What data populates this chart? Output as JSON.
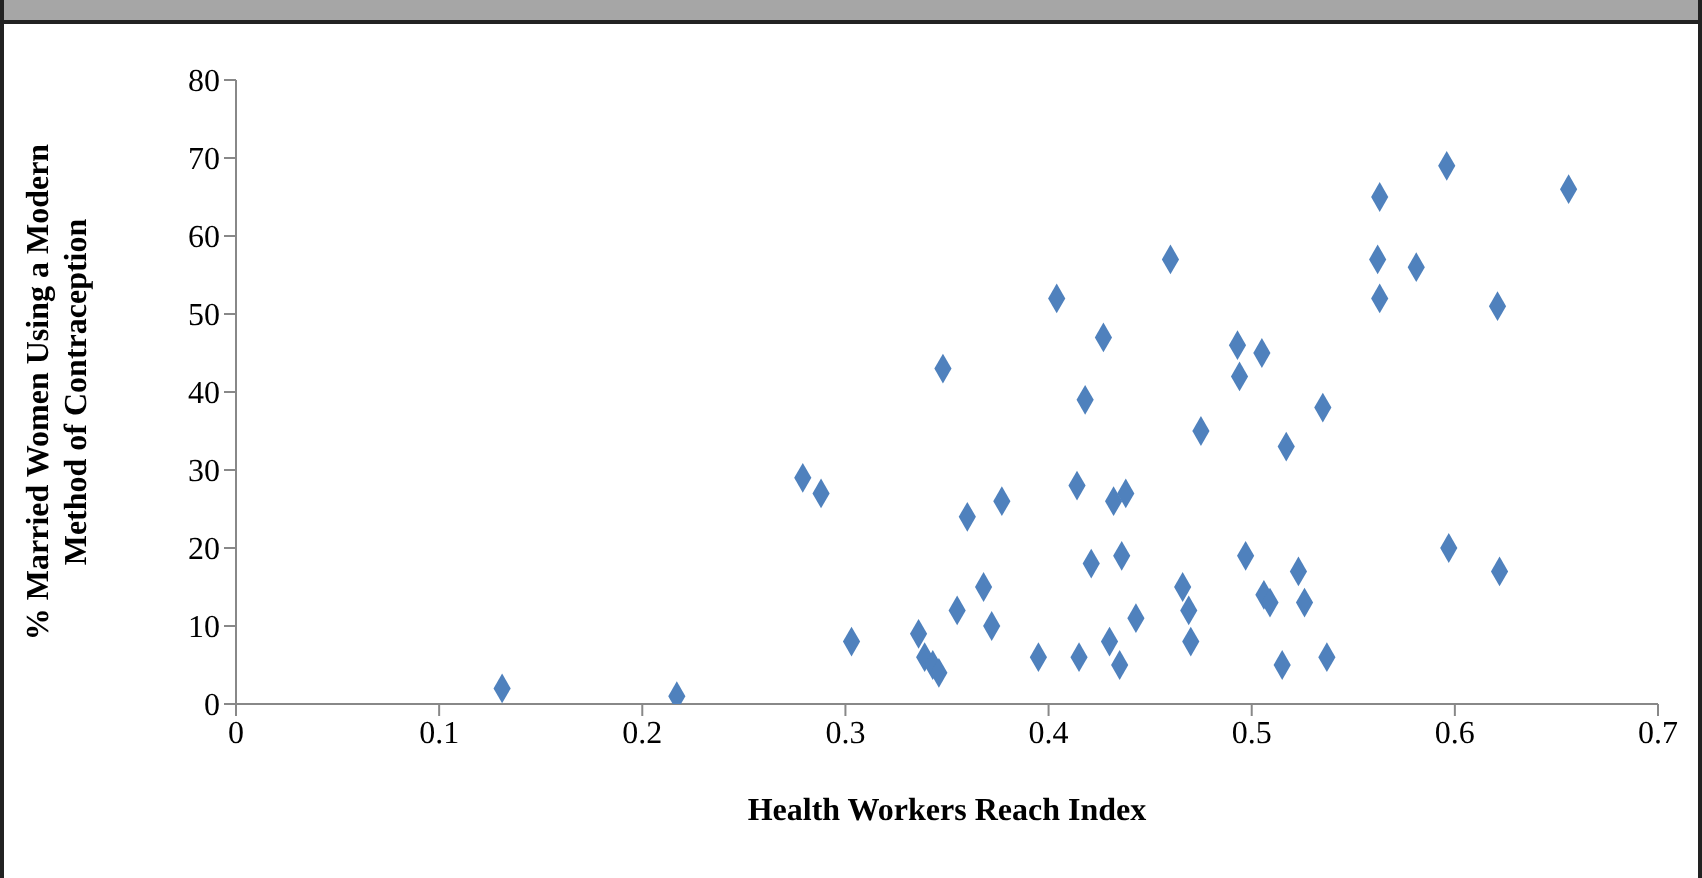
{
  "chart_data": {
    "type": "scatter",
    "xlabel": "Health Workers Reach Index",
    "ylabel": "% Married Women Using a Modern Method of Contraception",
    "xlim": [
      0,
      0.7
    ],
    "xticks": [
      0,
      0.1,
      0.2,
      0.3,
      0.4,
      0.5,
      0.6,
      0.7
    ],
    "ylim": [
      0,
      80
    ],
    "yticks": [
      0,
      10,
      20,
      30,
      40,
      50,
      60,
      70,
      80
    ],
    "grid": false,
    "legend": false,
    "marker": "diamond",
    "series": [
      {
        "color": "#4f81bd",
        "x": [
          0.131,
          0.217,
          0.279,
          0.288,
          0.303,
          0.336,
          0.339,
          0.343,
          0.346,
          0.348,
          0.355,
          0.36,
          0.368,
          0.372,
          0.377,
          0.395,
          0.404,
          0.414,
          0.415,
          0.418,
          0.421,
          0.427,
          0.43,
          0.432,
          0.435,
          0.436,
          0.438,
          0.443,
          0.46,
          0.466,
          0.469,
          0.47,
          0.475,
          0.493,
          0.494,
          0.497,
          0.505,
          0.506,
          0.509,
          0.515,
          0.517,
          0.523,
          0.526,
          0.535,
          0.537,
          0.563,
          0.562,
          0.563,
          0.581,
          0.596,
          0.597,
          0.621,
          0.622,
          0.656
        ],
        "values": [
          2,
          1,
          29,
          27,
          8,
          9,
          6,
          5,
          4,
          43,
          12,
          24,
          15,
          10,
          26,
          6,
          52,
          28,
          6,
          39,
          18,
          47,
          8,
          26,
          5,
          19,
          27,
          11,
          57,
          15,
          12,
          8,
          35,
          46,
          42,
          19,
          45,
          14,
          13,
          5,
          33,
          17,
          13,
          38,
          6,
          65,
          57,
          52,
          56,
          69,
          20,
          51,
          17,
          66
        ]
      }
    ]
  }
}
